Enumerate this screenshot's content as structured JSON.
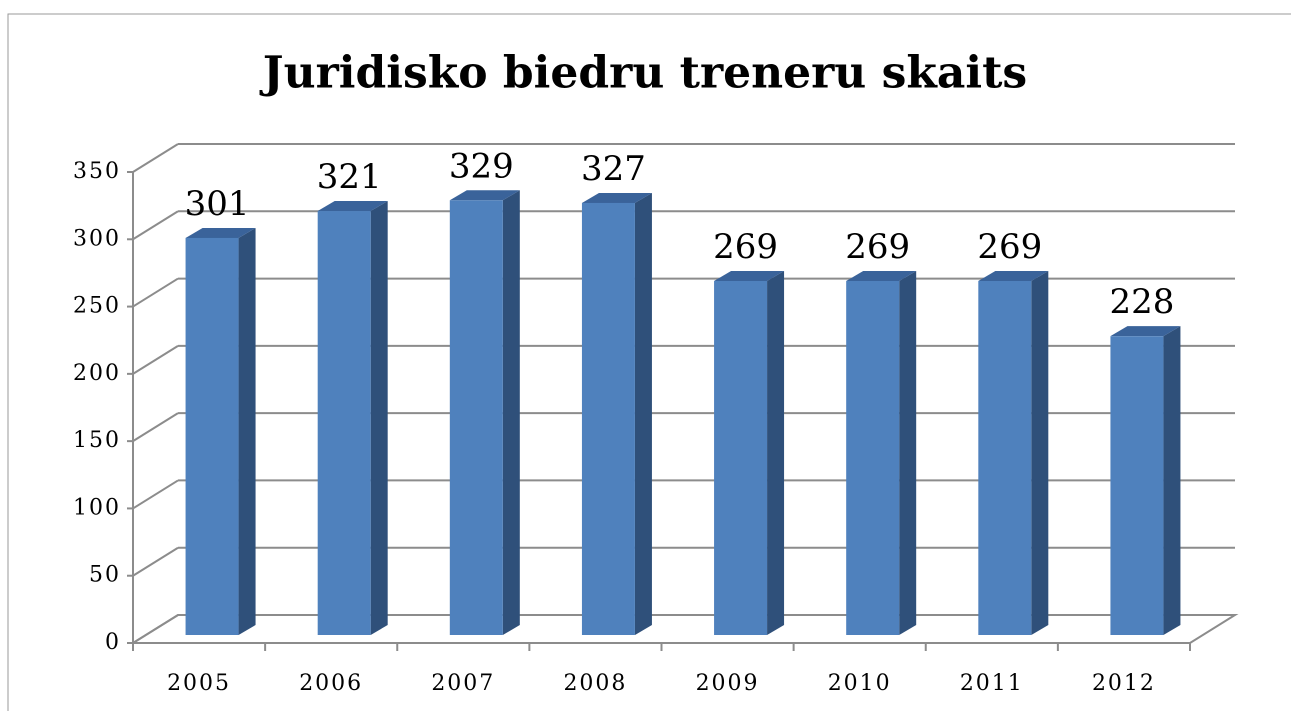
{
  "chart_data": {
    "type": "bar3d",
    "title": "Juridisko biedru treneru skaits",
    "categories": [
      "2005",
      "2006",
      "2007",
      "2008",
      "2009",
      "2010",
      "2011",
      "2012"
    ],
    "values": [
      301,
      321,
      329,
      327,
      269,
      269,
      269,
      228
    ],
    "color": "#4f81bd",
    "ylim": [
      0,
      350
    ],
    "yticks": [
      0,
      50,
      100,
      150,
      200,
      250,
      300,
      350
    ],
    "grid": true
  }
}
